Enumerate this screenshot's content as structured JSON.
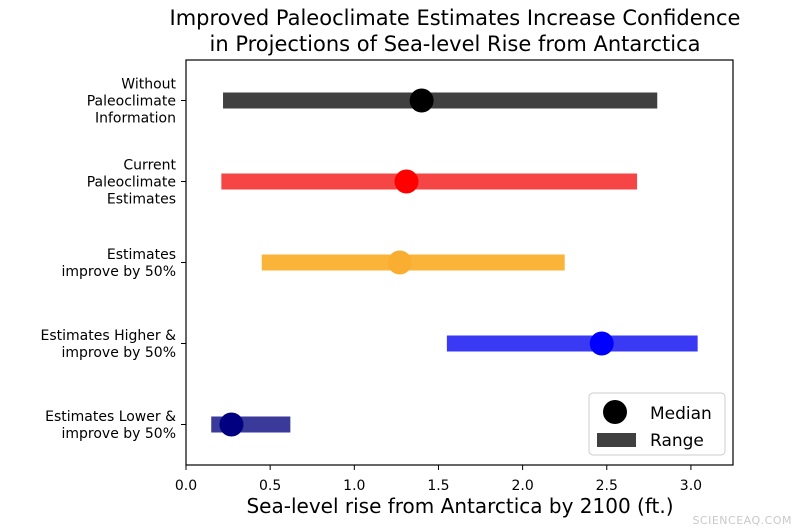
{
  "chart_data": {
    "type": "range",
    "title_lines": [
      "Improved Paleoclimate Estimates Increase Confidence",
      "in Projections of Sea-level Rise from Antarctica"
    ],
    "xlabel": "Sea-level rise from Antarctica by 2100 (ft.)",
    "ylabel": "",
    "xlim": [
      0.0,
      3.25
    ],
    "xticks": [
      "0.0",
      "0.5",
      "1.0",
      "1.5",
      "2.0",
      "2.5",
      "3.0"
    ],
    "grid": false,
    "legend": {
      "placement": "lower-right",
      "entries": [
        {
          "label": "Median",
          "marker": "circle"
        },
        {
          "label": "Range",
          "marker": "bar"
        }
      ]
    },
    "series": [
      {
        "label": [
          "Without",
          "Paleoclimate",
          "Information"
        ],
        "min": 0.22,
        "max": 2.8,
        "median": 1.4,
        "color": "#404040",
        "median_color": "#000000"
      },
      {
        "label": [
          "Current",
          "Paleoclimate",
          "Estimates"
        ],
        "min": 0.21,
        "max": 2.68,
        "median": 1.31,
        "color": "#f54545",
        "median_color": "#ff0000"
      },
      {
        "label": [
          "Estimates",
          "improve by 50%"
        ],
        "min": 0.45,
        "max": 2.25,
        "median": 1.27,
        "color": "#fbb43a",
        "median_color": "#f9ae31"
      },
      {
        "label": [
          "Estimates Higher &",
          "improve by 50%"
        ],
        "min": 1.55,
        "max": 3.04,
        "median": 2.47,
        "color": "#3a3af5",
        "median_color": "#0000ff"
      },
      {
        "label": [
          "Estimates Lower &",
          "improve by 50%"
        ],
        "min": 0.15,
        "max": 0.62,
        "median": 0.27,
        "color": "#3a3a9a",
        "median_color": "#000080"
      }
    ]
  },
  "watermark": "SCIENCEAQ.COM"
}
